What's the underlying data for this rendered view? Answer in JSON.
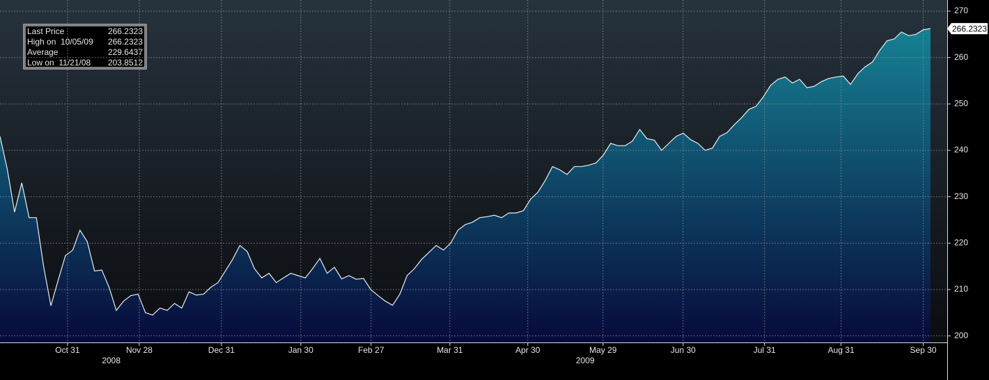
{
  "chart_data": {
    "type": "area",
    "values": [
      243,
      236,
      226.7,
      233,
      225.5,
      225.5,
      215,
      206.5,
      212,
      217.3,
      218.5,
      222.8,
      220.3,
      214,
      214.2,
      210.5,
      205.5,
      207.5,
      208.7,
      209,
      205,
      204.5,
      206,
      205.5,
      207,
      206,
      209.5,
      208.8,
      209,
      210.5,
      211.5,
      214,
      216.5,
      219.5,
      218.2,
      214.5,
      212.5,
      213.5,
      211.5,
      212.5,
      213.5,
      213,
      212.5,
      214.5,
      216.7,
      213.5,
      214.8,
      212.3,
      213,
      212.2,
      212.4,
      210,
      208.7,
      207.5,
      206.6,
      209,
      213,
      214.5,
      216.5,
      218,
      219.5,
      218.5,
      220,
      222.8,
      224,
      224.5,
      225.5,
      225.7,
      226,
      225.5,
      226.5,
      226.5,
      227,
      229.5,
      231,
      233.5,
      236.5,
      235.8,
      234.8,
      236.5,
      236.5,
      236.8,
      237.3,
      239,
      241.5,
      241,
      241,
      242,
      244.5,
      242.5,
      242.2,
      240,
      241.5,
      243,
      243.7,
      242.3,
      241.5,
      240,
      240.5,
      243,
      243.8,
      245.5,
      247,
      248.8,
      249.5,
      251.5,
      254,
      255.3,
      255.8,
      254.5,
      255.3,
      253.5,
      253.8,
      254.8,
      255.5,
      255.8,
      256,
      254.2,
      256.5,
      258,
      259,
      261.5,
      263.6,
      264,
      265.5,
      264.7,
      265,
      266,
      266.2323
    ],
    "xlim": [
      0,
      128
    ],
    "xticks": [
      {
        "value": 9.29,
        "label": "Oct 31"
      },
      {
        "value": 19.16,
        "label": "Nov 28"
      },
      {
        "value": 30.46,
        "label": "Dec 31"
      },
      {
        "value": 41.38,
        "label": "Jan 30"
      },
      {
        "value": 51.05,
        "label": "Feb 27"
      },
      {
        "value": 61.88,
        "label": "Mar 31"
      },
      {
        "value": 72.6,
        "label": "Apr 30"
      },
      {
        "value": 82.95,
        "label": "May 29"
      },
      {
        "value": 93.97,
        "label": "Jun 30"
      },
      {
        "value": 105.17,
        "label": "Jul 31"
      },
      {
        "value": 115.7,
        "label": "Aug 31"
      },
      {
        "value": 127.0,
        "label": "Sep 30"
      }
    ],
    "year_labels": [
      {
        "value": 15.3,
        "label": "2008"
      },
      {
        "value": 80.5,
        "label": "2009"
      }
    ],
    "ylim": [
      198.6,
      272.4
    ],
    "yticks": [
      200,
      210,
      220,
      230,
      240,
      250,
      260,
      270
    ],
    "grid": true,
    "color": "#e8eef2",
    "fill_top": "#178c9c",
    "fill_bottom": "#070a3a",
    "stats": [
      {
        "label": "Last Price",
        "value": "266.2323"
      },
      {
        "label": "High on  10/05/09",
        "value": "266.2323"
      },
      {
        "label": "Average",
        "value": "229.6437"
      },
      {
        "label": "Low on  11/21/08",
        "value": "203.8512"
      }
    ]
  }
}
